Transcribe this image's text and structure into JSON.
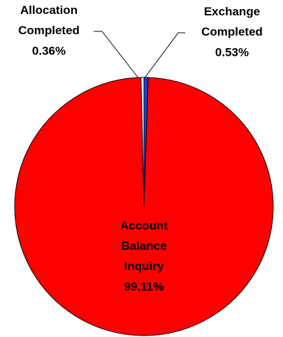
{
  "chart_data": {
    "type": "pie",
    "categories": [
      "Exchange Completed",
      "Account Balance Inquiry",
      "Allocation Completed"
    ],
    "values": [
      0.53,
      99.11,
      0.36
    ],
    "value_labels": [
      "0.53%",
      "99.11%",
      "0.36%"
    ],
    "colors": [
      "#1a3ee0",
      "#ff0000",
      "#ffffff"
    ]
  }
}
